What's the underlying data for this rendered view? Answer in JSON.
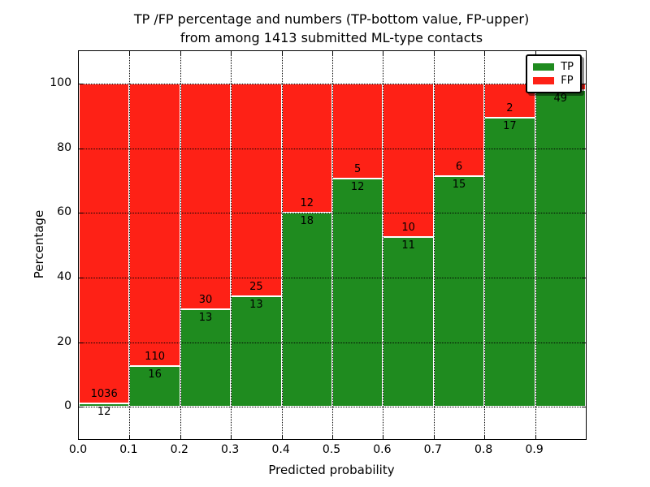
{
  "chart_data": {
    "type": "bar",
    "stacked": true,
    "title_line1": "TP /FP percentage and numbers (TP-bottom value, FP-upper)",
    "title_line2": "from among 1413 submitted ML-type contacts",
    "xlabel": "Predicted probability",
    "ylabel": "Percentage",
    "xlim": [
      0.0,
      1.0
    ],
    "ylim": [
      -10,
      110
    ],
    "grid": true,
    "x_ticks": [
      0.0,
      0.1,
      0.2,
      0.3,
      0.4,
      0.5,
      0.6,
      0.7,
      0.8,
      0.9
    ],
    "x_tick_labels": [
      "0.0",
      "0.1",
      "0.2",
      "0.3",
      "0.4",
      "0.5",
      "0.6",
      "0.7",
      "0.8",
      "0.9"
    ],
    "y_ticks": [
      0,
      20,
      40,
      60,
      80,
      100
    ],
    "y_tick_labels": [
      "0",
      "20",
      "40",
      "60",
      "80",
      "100"
    ],
    "legend": [
      {
        "name": "TP",
        "color": "#1f8b1f"
      },
      {
        "name": "FP",
        "color": "#fe2116"
      }
    ],
    "colors": {
      "tp": "#1f8b1f",
      "fp": "#fe2116",
      "bar_edge": "#ffffff",
      "grid": "#000000"
    },
    "legend_position": "upper right",
    "bars": [
      {
        "bin_start": 0.0,
        "bin_end": 0.1,
        "tp": 12,
        "fp": 1036,
        "tp_pct": 1.15,
        "tp_label": "12",
        "fp_label": "1036"
      },
      {
        "bin_start": 0.1,
        "bin_end": 0.2,
        "tp": 16,
        "fp": 110,
        "tp_pct": 12.7,
        "tp_label": "16",
        "fp_label": "110"
      },
      {
        "bin_start": 0.2,
        "bin_end": 0.3,
        "tp": 13,
        "fp": 30,
        "tp_pct": 30.2,
        "tp_label": "13",
        "fp_label": "30"
      },
      {
        "bin_start": 0.3,
        "bin_end": 0.4,
        "tp": 13,
        "fp": 25,
        "tp_pct": 34.2,
        "tp_label": "13",
        "fp_label": "25"
      },
      {
        "bin_start": 0.4,
        "bin_end": 0.5,
        "tp": 18,
        "fp": 12,
        "tp_pct": 60.0,
        "tp_label": "18",
        "fp_label": "12"
      },
      {
        "bin_start": 0.5,
        "bin_end": 0.6,
        "tp": 12,
        "fp": 5,
        "tp_pct": 70.6,
        "tp_label": "12",
        "fp_label": "5"
      },
      {
        "bin_start": 0.6,
        "bin_end": 0.7,
        "tp": 11,
        "fp": 10,
        "tp_pct": 52.4,
        "tp_label": "11",
        "fp_label": "10"
      },
      {
        "bin_start": 0.7,
        "bin_end": 0.8,
        "tp": 15,
        "fp": 6,
        "tp_pct": 71.4,
        "tp_label": "15",
        "fp_label": "6"
      },
      {
        "bin_start": 0.8,
        "bin_end": 0.9,
        "tp": 17,
        "fp": 2,
        "tp_pct": 89.5,
        "tp_label": "17",
        "fp_label": "2"
      },
      {
        "bin_start": 0.9,
        "bin_end": 1.0,
        "tp": 49,
        "fp": null,
        "tp_pct": 98.0,
        "tp_label": "49",
        "fp_label": ""
      }
    ]
  }
}
